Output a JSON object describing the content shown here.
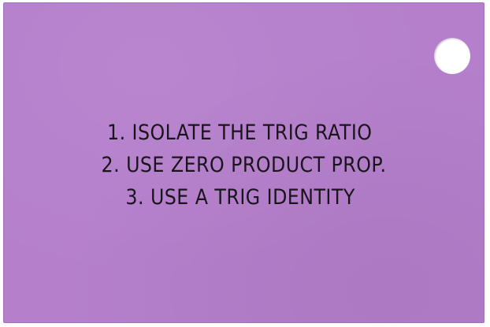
{
  "card": {
    "background_color": "#b57fcc",
    "lines": [
      "1. ISOLATE THE TRIG RATIO",
      "2. USE ZERO PRODUCT PROP.",
      "3. USE A TRIG IDENTITY"
    ]
  }
}
